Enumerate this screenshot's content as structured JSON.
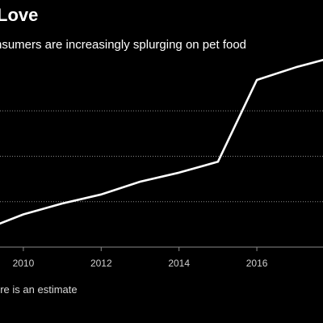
{
  "chart_data": {
    "type": "line",
    "title": "Love",
    "subtitle": "nsumers are increasingly splurging on pet food",
    "xlabel": "",
    "ylabel": "",
    "x_ticks": [
      "2010",
      "2012",
      "2014",
      "2016"
    ],
    "xlim": [
      2009.4,
      2017.7
    ],
    "ylim": [
      0,
      1
    ],
    "grid": true,
    "y_gridlines": [
      0.25,
      0.5,
      0.75
    ],
    "series": [
      {
        "x": [
          2009.4,
          2010,
          2011,
          2012,
          2013,
          2014,
          2015,
          2016,
          2017,
          2017.7
        ],
        "y": [
          0.13,
          0.18,
          0.24,
          0.29,
          0.36,
          0.41,
          0.47,
          0.92,
          0.99,
          1.03
        ],
        "color": "#ffffff"
      }
    ],
    "footnote": "ure is an estimate"
  }
}
